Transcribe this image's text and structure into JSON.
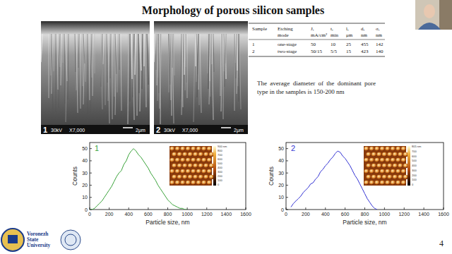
{
  "title": "Morphology of porous silicon samples",
  "sem_images": [
    {
      "label": "1",
      "voltage": "30kV",
      "magnification": "X7,000",
      "scale": "2μm"
    },
    {
      "label": "2",
      "voltage": "30kV",
      "magnification": "X7,000",
      "scale": "2μm"
    }
  ],
  "table": {
    "header": [
      [
        "Sample"
      ],
      [
        "Etching",
        "mode"
      ],
      [
        "J,",
        "mA/cm²"
      ],
      [
        "t,",
        "min"
      ],
      [
        "l,",
        "μm"
      ],
      [
        "d,",
        "nm"
      ],
      [
        "σ,",
        "nm"
      ]
    ],
    "rows": [
      [
        "1",
        "one-stage",
        "50",
        "10",
        "25",
        "455",
        "142"
      ],
      [
        "2",
        "two-stage",
        "50/15",
        "5/5",
        "15",
        "423",
        "140"
      ]
    ]
  },
  "note": "The average diameter of the dominant pore type in the samples is 150-200 nm",
  "chart_data": [
    {
      "type": "line",
      "title": "1",
      "xlabel": "Particle size, nm",
      "ylabel": "Counts",
      "x": [
        0,
        25,
        50,
        75,
        100,
        125,
        150,
        175,
        200,
        225,
        250,
        275,
        300,
        325,
        350,
        375,
        400,
        425,
        450,
        475,
        500,
        525,
        550,
        575,
        600,
        625,
        650,
        675,
        700,
        725,
        750,
        775,
        800,
        825,
        850,
        875,
        900,
        925,
        950,
        975,
        1000
      ],
      "series": [
        {
          "name": "1",
          "color": "#3aa33a",
          "values": [
            0,
            0,
            1,
            3,
            5,
            7,
            10,
            13,
            16,
            19,
            23,
            27,
            30,
            32,
            37,
            40,
            45,
            48,
            50,
            48,
            45,
            43,
            40,
            37,
            34,
            30,
            27,
            24,
            20,
            17,
            14,
            11,
            8,
            6,
            4,
            3,
            2,
            1,
            1,
            0,
            0
          ]
        }
      ],
      "xlim": [
        0,
        1600
      ],
      "ylim": [
        0,
        55
      ],
      "xticks": [
        0,
        200,
        400,
        600,
        800,
        1000,
        1200,
        1400,
        1600
      ],
      "yticks": [
        0,
        10,
        20,
        30,
        40,
        50
      ]
    },
    {
      "type": "line",
      "title": "2",
      "xlabel": "Particle size, nm",
      "ylabel": "Counts",
      "x": [
        0,
        25,
        50,
        75,
        100,
        125,
        150,
        175,
        200,
        225,
        250,
        275,
        300,
        325,
        350,
        375,
        400,
        425,
        450,
        475,
        500,
        525,
        550,
        575,
        600,
        625,
        650,
        675,
        700,
        725,
        750,
        775,
        800,
        825,
        850,
        875,
        900,
        925,
        950,
        975,
        1000
      ],
      "series": [
        {
          "name": "2",
          "color": "#3434d4",
          "values": [
            null,
            null,
            2,
            5,
            7,
            9,
            11,
            14,
            16,
            18,
            21,
            22,
            25,
            27,
            31,
            33,
            36,
            38,
            41,
            43,
            46,
            48,
            47,
            44,
            42,
            39,
            36,
            32,
            28,
            25,
            21,
            17,
            13,
            9,
            6,
            3,
            1,
            0,
            null,
            null,
            null
          ]
        }
      ],
      "xlim": [
        0,
        1600
      ],
      "ylim": [
        0,
        55
      ],
      "xticks": [
        0,
        200,
        400,
        600,
        800,
        1000,
        1200,
        1400,
        1600
      ],
      "yticks": [
        0,
        10,
        20,
        30,
        40,
        50
      ]
    }
  ],
  "afm_insets": [
    {
      "colorbar_labels": [
        "900 nm",
        "800",
        "700",
        "600",
        "500",
        "400",
        "300",
        "200",
        "100",
        "0"
      ]
    },
    {
      "colorbar_labels": [
        "805 nm",
        "700",
        "600",
        "500",
        "400",
        "300",
        "200",
        "100",
        "0"
      ]
    }
  ],
  "footer": {
    "university": [
      "Voronezh",
      "State",
      "University"
    ]
  },
  "page": "4"
}
